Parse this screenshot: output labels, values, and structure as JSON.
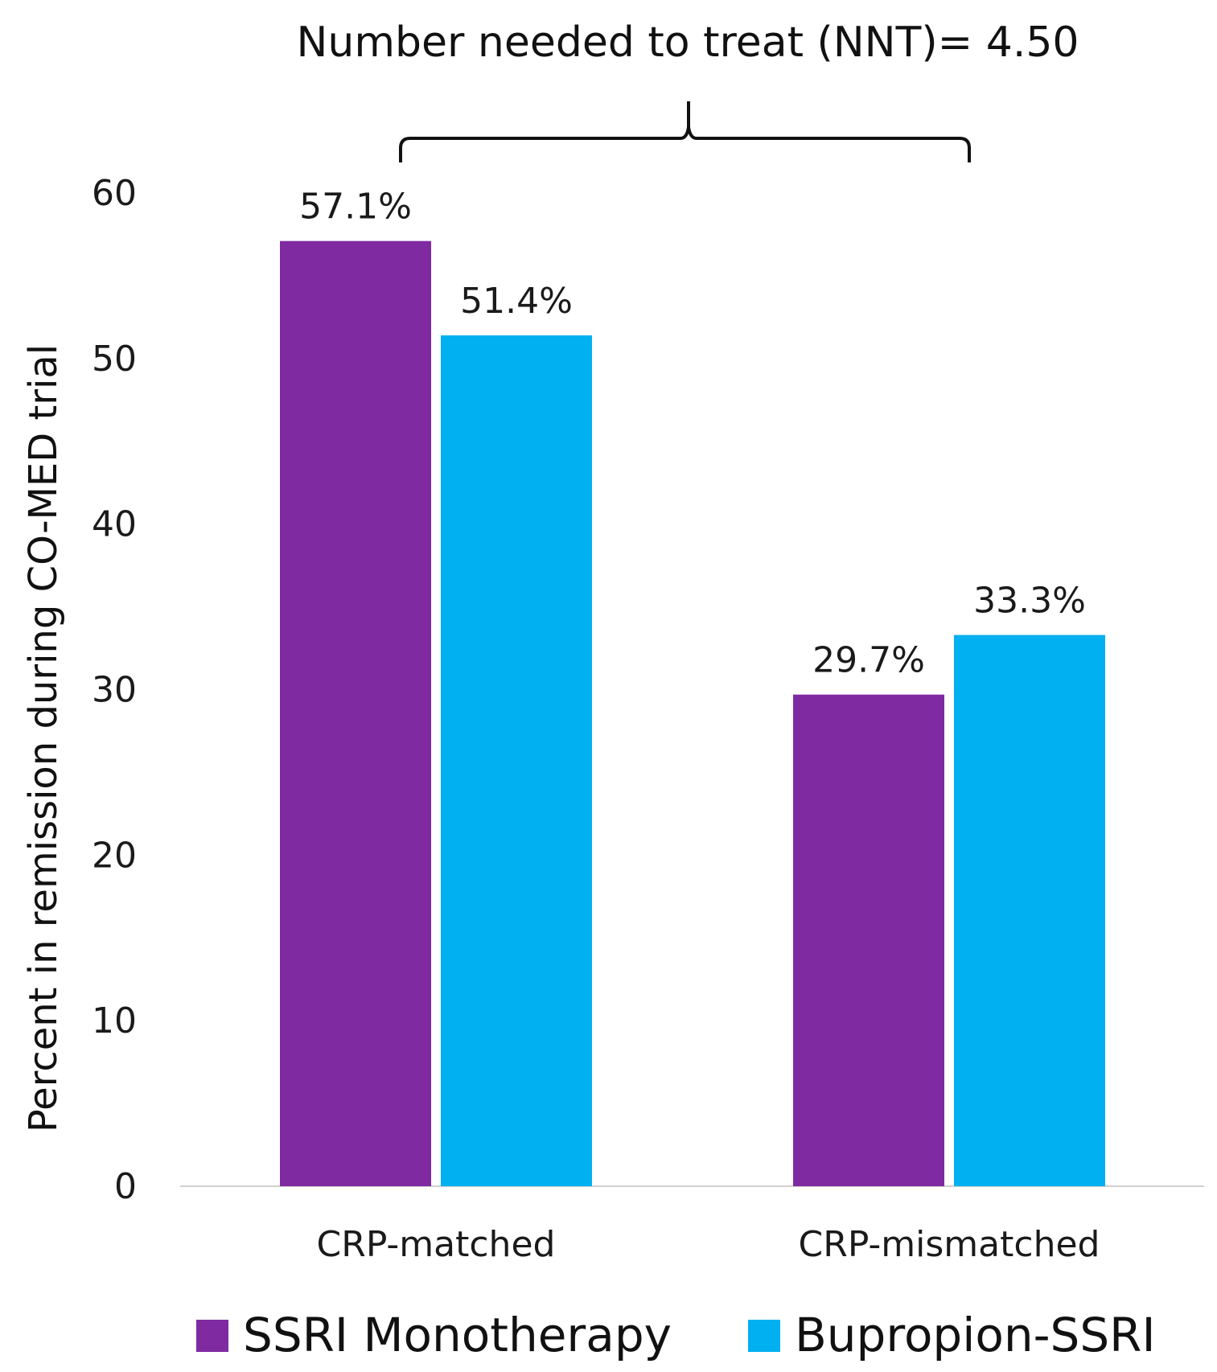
{
  "chart_data": {
    "type": "bar",
    "title": "",
    "xlabel": "",
    "ylabel": "Percent in remission during CO-MED trial",
    "ylim": [
      0,
      60
    ],
    "yticks": [
      0,
      10,
      20,
      30,
      40,
      50,
      60
    ],
    "categories": [
      "CRP-matched",
      "CRP-mismatched"
    ],
    "series": [
      {
        "name": "SSRI Monotherapy",
        "color": "#7f2aa1",
        "values": [
          57.1,
          29.7
        ],
        "labels": [
          "57.1%",
          "29.7%"
        ]
      },
      {
        "name": "Bupropion-SSRI",
        "color": "#00b0f0",
        "values": [
          51.4,
          33.3
        ],
        "labels": [
          "51.4%",
          "33.3%"
        ]
      }
    ],
    "annotation": "Number needed to treat (NNT)= 4.50",
    "legend_position": "bottom",
    "grid": false
  }
}
